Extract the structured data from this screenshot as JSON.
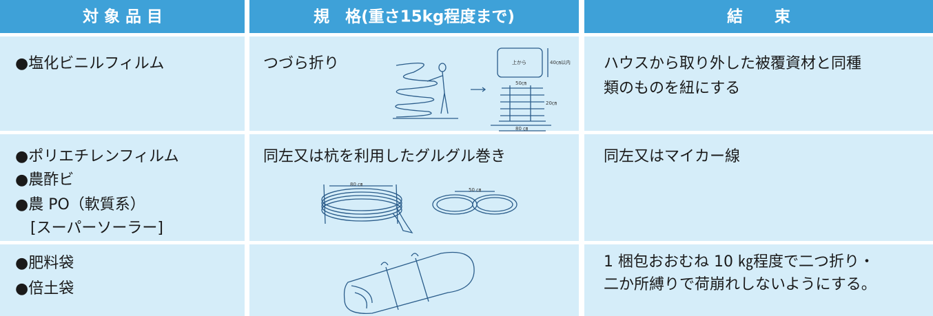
{
  "header": {
    "columns": [
      "対 象 品 目",
      "規　格(重さ15kg程度まで)",
      "結　　束"
    ]
  },
  "rows": [
    {
      "items": [
        "●塩化ビニルフィルム"
      ],
      "spec": "つづら折り",
      "binding": [
        "ハウスから取り外した被覆資材と同種",
        "類のものを紐にする"
      ]
    },
    {
      "items": [
        "●ポリエチレンフィルム",
        "●農酢ビ",
        "●農 PO（軟質系）",
        "　[スーパーソーラー]"
      ],
      "spec": "同左又は杭を利用したグルグル巻き",
      "binding": [
        "同左又はマイカー線"
      ]
    },
    {
      "items": [
        "●肥料袋",
        "●倍土袋"
      ],
      "binding": [
        "1 梱包おおむね 10 ㎏程度で二つ折り・",
        "二か所縛りで荷崩れしないようにする。"
      ]
    }
  ],
  "illustrations": {
    "top_view": "上から",
    "height_limit": "40㎝以内",
    "stack_width": "50㎝",
    "stack_height": "20㎝",
    "stack_length": "80 ㎝",
    "stake_coil": "80 ㎝",
    "figure_eight": "50 ㎝"
  }
}
